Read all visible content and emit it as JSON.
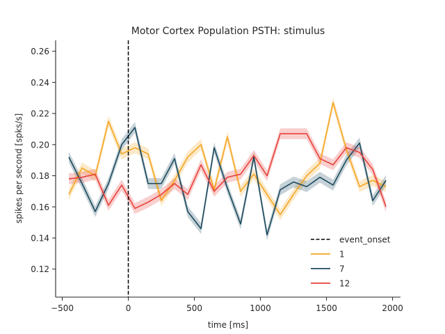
{
  "chart_data": {
    "type": "line",
    "title": "Motor Cortex Population PSTH: stimulus",
    "xlabel": "time [ms]",
    "ylabel": "spikes per second [spks/s]",
    "xlim": [
      -550,
      2060
    ],
    "ylim": [
      0.102,
      0.267
    ],
    "xticks": [
      -500,
      0,
      500,
      1000,
      1500,
      2000
    ],
    "xtick_labels": [
      "−500",
      "0",
      "500",
      "1000",
      "1500",
      "2000"
    ],
    "yticks": [
      0.12,
      0.14,
      0.16,
      0.18,
      0.2,
      0.22,
      0.24,
      0.26
    ],
    "ytick_labels": [
      "0.12",
      "0.14",
      "0.16",
      "0.18",
      "0.20",
      "0.22",
      "0.24",
      "0.26"
    ],
    "grid": false,
    "legend_position": "lower-right",
    "event_onset": {
      "name": "event_onset",
      "x": 0,
      "color": "#000000"
    },
    "x": [
      -450,
      -350,
      -250,
      -150,
      -50,
      50,
      150,
      250,
      350,
      450,
      550,
      650,
      750,
      850,
      950,
      1050,
      1150,
      1250,
      1350,
      1450,
      1550,
      1650,
      1750,
      1850,
      1950
    ],
    "series": [
      {
        "name": "1",
        "color": "#f5a623",
        "values": [
          0.168,
          0.185,
          0.18,
          0.215,
          0.194,
          0.198,
          0.194,
          0.164,
          0.177,
          0.192,
          0.2,
          0.171,
          0.205,
          0.17,
          0.181,
          0.168,
          0.155,
          0.168,
          0.18,
          0.188,
          0.227,
          0.197,
          0.173,
          0.177,
          0.173
        ],
        "band": 0.0035
      },
      {
        "name": "7",
        "color": "#1b4a5e",
        "values": [
          0.192,
          0.175,
          0.157,
          0.175,
          0.2,
          0.211,
          0.175,
          0.175,
          0.191,
          0.157,
          0.146,
          0.198,
          0.172,
          0.149,
          0.192,
          0.142,
          0.171,
          0.176,
          0.173,
          0.179,
          0.174,
          0.19,
          0.201,
          0.164,
          0.177
        ],
        "band": 0.0035
      },
      {
        "name": "12",
        "color": "#e8403a",
        "values": [
          0.178,
          0.179,
          0.181,
          0.161,
          0.174,
          0.159,
          0.163,
          0.168,
          0.175,
          0.168,
          0.187,
          0.17,
          0.179,
          0.181,
          0.193,
          0.18,
          0.207,
          0.207,
          0.207,
          0.191,
          0.187,
          0.198,
          0.195,
          0.184,
          0.16
        ],
        "band": 0.0035
      }
    ]
  }
}
